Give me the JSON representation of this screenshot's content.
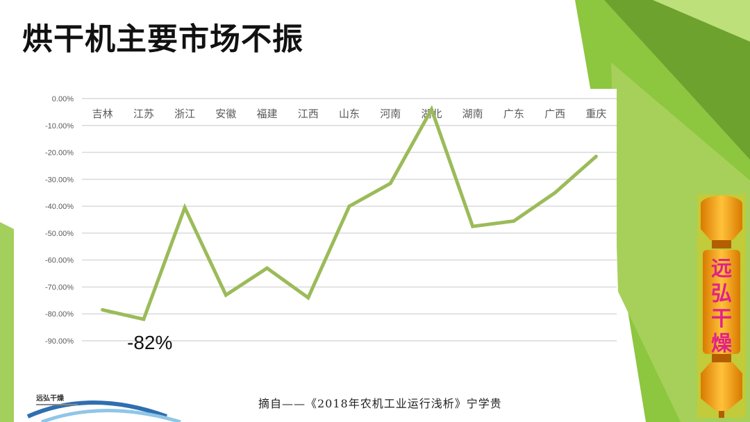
{
  "title": "烘干机主要市场不振",
  "callout": "-82%",
  "footer": "摘自——《2018年农机工业运行浅析》宁学贵",
  "logo": "远弘干燥",
  "brand_chars": [
    "远",
    "弘",
    "干",
    "燥"
  ],
  "colors": {
    "line": "#9bbb59",
    "grid": "#d9d9d9",
    "tick": "#595959",
    "brand_text": "#e0218a"
  },
  "chart_data": {
    "type": "line",
    "categories": [
      "吉林",
      "江苏",
      "浙江",
      "安徽",
      "福建",
      "江西",
      "山东",
      "河南",
      "湖北",
      "湖南",
      "广东",
      "广西",
      "重庆"
    ],
    "series": [
      {
        "values": [
          -78.5,
          -82.0,
          -40.5,
          -73.0,
          -63.0,
          -74.0,
          -40.0,
          -31.5,
          -4.0,
          -47.5,
          -45.5,
          -35.0,
          -21.5
        ]
      }
    ],
    "y_ticks": [
      "0.00%",
      "-10.00%",
      "-20.00%",
      "-30.00%",
      "-40.00%",
      "-50.00%",
      "-60.00%",
      "-70.00%",
      "-80.00%",
      "-90.00%"
    ],
    "ylim": [
      -90,
      0
    ],
    "x_labels_position": "top",
    "grid": true,
    "legend": "none",
    "annotation": "-82%"
  }
}
